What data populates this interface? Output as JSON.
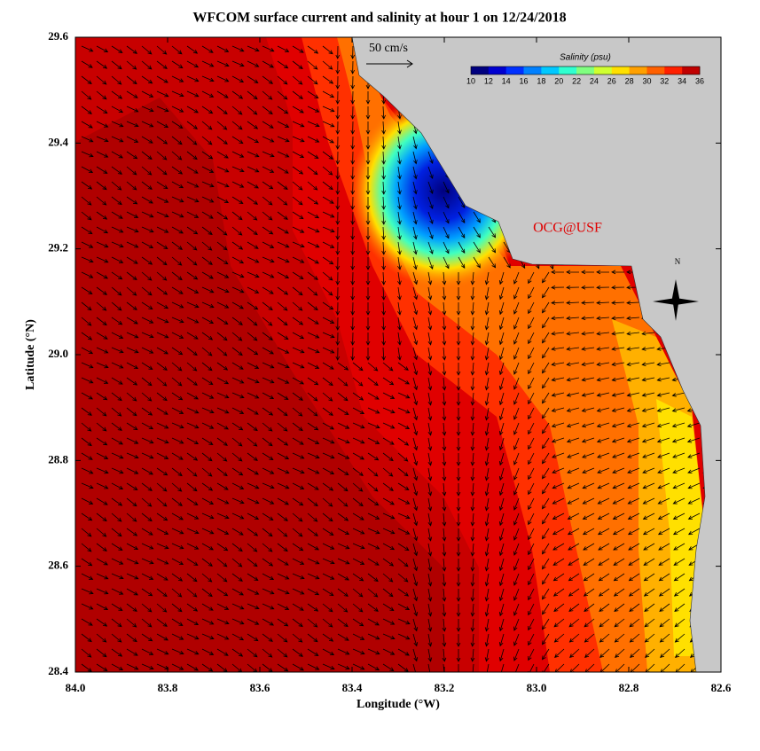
{
  "title": "WFCOM surface current and salinity at hour 1 on 12/24/2018",
  "x_label": "Longitude (°W)",
  "y_label": "Latitude (°N)",
  "xlim": [
    84.0,
    82.6
  ],
  "ylim": [
    28.4,
    29.6
  ],
  "xticks": [
    {
      "value": 84.0,
      "label": "84.0"
    },
    83.8,
    83.6,
    83.4,
    83.2,
    {
      "value": 83.0,
      "label": "83.0"
    },
    82.8,
    82.6
  ],
  "yticks": [
    28.4,
    28.6,
    28.8,
    {
      "value": 29.0,
      "label": "29.0"
    },
    29.2,
    29.4,
    29.6
  ],
  "scale_label": "50 cm/s",
  "watermark": "OCG@USF",
  "compass_label": "N",
  "colorbar": {
    "label": "Salinity (psu)",
    "ticks": [
      10,
      12,
      14,
      16,
      18,
      20,
      22,
      24,
      26,
      28,
      30,
      32,
      34,
      36
    ],
    "colors": [
      "#00007f",
      "#0000d0",
      "#0030ff",
      "#0080ff",
      "#00c8ff",
      "#30ffd0",
      "#80ff80",
      "#d0ff30",
      "#ffe000",
      "#ffa000",
      "#ff6000",
      "#ff2000",
      "#c00000"
    ]
  }
}
